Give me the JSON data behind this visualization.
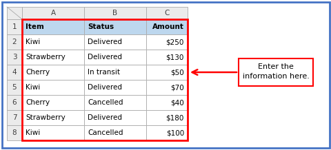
{
  "fig_width": 4.81,
  "fig_height": 2.18,
  "dpi": 100,
  "outer_border_color": "#4472C4",
  "outer_border_lw": 2.0,
  "header_bg": "#BDD7EE",
  "cell_bg": "#FFFFFF",
  "gray_bg": "#E0E0E0",
  "table_border_color": "#FF0000",
  "col_labels": [
    "A",
    "B",
    "C"
  ],
  "headers": [
    "Item",
    "Status",
    "Amount"
  ],
  "rows": [
    [
      "Kiwi",
      "Delivered",
      "$250"
    ],
    [
      "Strawberry",
      "Delivered",
      "$130"
    ],
    [
      "Cherry",
      "In transit",
      "$50"
    ],
    [
      "Kiwi",
      "Delivered",
      "$70"
    ],
    [
      "Cherry",
      "Cancelled",
      "$40"
    ],
    [
      "Strawberry",
      "Delivered",
      "$180"
    ],
    [
      "Kiwi",
      "Cancelled",
      "$100"
    ]
  ],
  "annotation_text": "Enter the\ninformation here.",
  "annotation_box_color": "#FF0000",
  "arrow_color": "#FF0000",
  "font_size": 7.5,
  "bold_font_size": 8.0
}
